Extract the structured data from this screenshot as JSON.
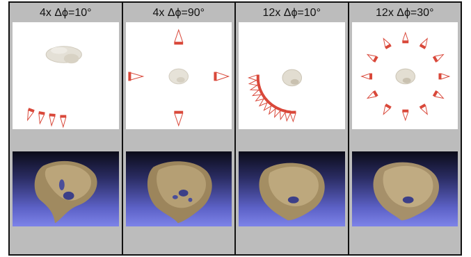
{
  "panels": [
    {
      "id": "p1",
      "title": "4x Δϕ=10°"
    },
    {
      "id": "p2",
      "title": "4x Δϕ=90°"
    },
    {
      "id": "p3",
      "title": "12x Δϕ=10°"
    },
    {
      "id": "p4",
      "title": "12x Δϕ=30°"
    }
  ],
  "colors": {
    "figure_background": "#bcbcbc",
    "view_background": "#ffffff",
    "camera_frustum": "#d9483a",
    "viewer_gradient_top": "#0b0b18",
    "viewer_gradient_bottom": "#7d83e8",
    "reconstruction": "#a8916a"
  }
}
